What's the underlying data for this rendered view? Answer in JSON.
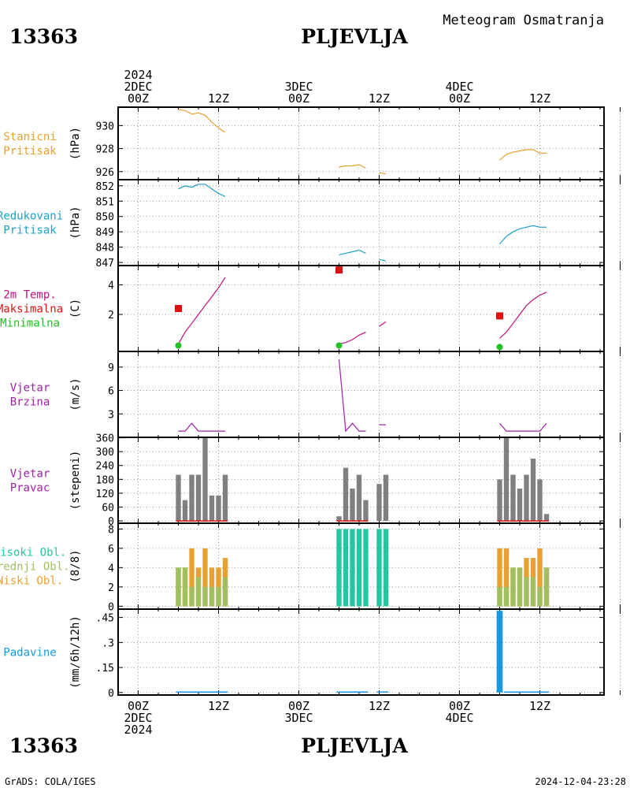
{
  "header": {
    "station_id": "13363",
    "station_name": "PLJEVLJA",
    "subtitle": "Meteogram Osmatranja"
  },
  "footer": {
    "station_id": "13363",
    "station_name": "PLJEVLJA",
    "credit": "GrADS: COLA/IGES",
    "timestamp": "2024-12-04-23:28"
  },
  "colors": {
    "pressure_station": "#e8a030",
    "pressure_reduced": "#1ea0c8",
    "temp_max": "#e01010",
    "temp_min": "#20c020",
    "temp_line": "#c0107a",
    "wind": "#a020a8",
    "wind_dir_bar": "#808080",
    "cloud_high": "#20c8a0",
    "cloud_mid": "#a0c060",
    "cloud_low": "#e8a030",
    "precip": "#1898e0"
  },
  "time_axis": {
    "x_range": [
      0,
      72
    ],
    "top_labels": [
      {
        "x": 0,
        "lines": [
          "2024",
          "2DEC",
          "00Z"
        ]
      },
      {
        "x": 12,
        "lines": [
          "12Z"
        ]
      },
      {
        "x": 24,
        "lines": [
          "3DEC",
          "00Z"
        ]
      },
      {
        "x": 36,
        "lines": [
          "12Z"
        ]
      },
      {
        "x": 48,
        "lines": [
          "4DEC",
          "00Z"
        ]
      },
      {
        "x": 60,
        "lines": [
          "12Z"
        ]
      }
    ],
    "bottom_labels": [
      {
        "x": 0,
        "lines": [
          "00Z",
          "2DEC",
          "2024"
        ]
      },
      {
        "x": 12,
        "lines": [
          "12Z"
        ]
      },
      {
        "x": 24,
        "lines": [
          "00Z",
          "3DEC"
        ]
      },
      {
        "x": 36,
        "lines": [
          "12Z"
        ]
      },
      {
        "x": 48,
        "lines": [
          "00Z",
          "4DEC"
        ]
      },
      {
        "x": 60,
        "lines": [
          "12Z"
        ]
      }
    ]
  },
  "chart_data": [
    {
      "type": "line",
      "name": "pressure_station",
      "labels": [
        "Stanicni",
        "Pritisak"
      ],
      "ylabel": "(hPa)",
      "ylim": [
        925.3,
        931.6
      ],
      "yticks": [
        926,
        928,
        930
      ],
      "grid": true,
      "series": [
        {
          "color_key": "pressure_station",
          "segments": [
            [
              [
                6,
                931.4
              ],
              [
                7,
                931.3
              ],
              [
                8,
                931.0
              ],
              [
                9,
                931.1
              ],
              [
                10,
                930.9
              ],
              [
                11,
                930.3
              ],
              [
                12,
                929.8
              ],
              [
                13,
                929.4
              ]
            ],
            [
              [
                30,
                926.4
              ],
              [
                31,
                926.5
              ],
              [
                32,
                926.5
              ],
              [
                33,
                926.6
              ],
              [
                34,
                926.3
              ]
            ],
            [
              [
                36,
                925.9
              ],
              [
                37,
                925.8
              ]
            ],
            [
              [
                54,
                927.0
              ],
              [
                55,
                927.5
              ],
              [
                56,
                927.7
              ],
              [
                57,
                927.8
              ],
              [
                58,
                927.9
              ],
              [
                59,
                927.9
              ],
              [
                60,
                927.6
              ],
              [
                61,
                927.6
              ]
            ]
          ]
        }
      ]
    },
    {
      "type": "line",
      "name": "pressure_reduced",
      "labels": [
        "Redukovani",
        "Pritisak"
      ],
      "ylabel": "(hPa)",
      "ylim": [
        846.8,
        852.4
      ],
      "yticks": [
        847,
        848,
        849,
        850,
        851,
        852
      ],
      "grid": true,
      "series": [
        {
          "color_key": "pressure_reduced",
          "segments": [
            [
              [
                6,
                851.8
              ],
              [
                7,
                852.0
              ],
              [
                8,
                851.9
              ],
              [
                9,
                852.1
              ],
              [
                10,
                852.1
              ],
              [
                11,
                851.8
              ],
              [
                12,
                851.5
              ],
              [
                13,
                851.3
              ]
            ],
            [
              [
                30,
                847.5
              ],
              [
                31,
                847.6
              ],
              [
                32,
                847.7
              ],
              [
                33,
                847.8
              ],
              [
                34,
                847.6
              ]
            ],
            [
              [
                36,
                847.2
              ],
              [
                37,
                847.1
              ]
            ],
            [
              [
                54,
                848.2
              ],
              [
                55,
                848.7
              ],
              [
                56,
                849.0
              ],
              [
                57,
                849.2
              ],
              [
                58,
                849.3
              ],
              [
                59,
                849.4
              ],
              [
                60,
                849.3
              ],
              [
                61,
                849.3
              ]
            ]
          ]
        }
      ]
    },
    {
      "type": "line",
      "name": "temperature",
      "labels": [
        "2m Temp.",
        "Maksimalna",
        "Minimalna"
      ],
      "label_color_keys": [
        "temp_line",
        "temp_max",
        "temp_min"
      ],
      "ylabel": "(C)",
      "ylim": [
        -0.5,
        5.3
      ],
      "yticks": [
        2,
        4
      ],
      "grid": true,
      "series": [
        {
          "color_key": "temp_line",
          "segments": [
            [
              [
                6,
                0.0
              ],
              [
                7,
                0.8
              ],
              [
                8,
                1.4
              ],
              [
                9,
                2.0
              ],
              [
                10,
                2.6
              ],
              [
                11,
                3.2
              ],
              [
                12,
                3.8
              ],
              [
                13,
                4.5
              ]
            ],
            [
              [
                30,
                0.0
              ],
              [
                31,
                0.1
              ],
              [
                32,
                0.3
              ],
              [
                33,
                0.6
              ],
              [
                34,
                0.8
              ]
            ],
            [
              [
                36,
                1.2
              ],
              [
                37,
                1.5
              ]
            ],
            [
              [
                54,
                0.4
              ],
              [
                55,
                0.8
              ],
              [
                56,
                1.4
              ],
              [
                57,
                2.0
              ],
              [
                58,
                2.6
              ],
              [
                59,
                3.0
              ],
              [
                60,
                3.3
              ],
              [
                61,
                3.5
              ]
            ]
          ]
        }
      ],
      "markers": [
        {
          "color_key": "temp_max",
          "shape": "square",
          "points": [
            [
              6,
              2.4
            ],
            [
              30,
              5.0
            ],
            [
              54,
              1.9
            ]
          ]
        },
        {
          "color_key": "temp_min",
          "shape": "circle",
          "points": [
            [
              6,
              -0.1
            ],
            [
              30,
              -0.1
            ],
            [
              54,
              -0.2
            ]
          ]
        }
      ]
    },
    {
      "type": "line",
      "name": "wind_speed",
      "labels": [
        "Vjetar",
        "Brzina"
      ],
      "ylabel": "(m/s)",
      "ylim": [
        0,
        11
      ],
      "yticks": [
        3,
        6,
        9
      ],
      "grid": true,
      "series": [
        {
          "color_key": "wind",
          "segments": [
            [
              [
                6,
                0.8
              ],
              [
                7,
                0.8
              ],
              [
                8,
                1.8
              ],
              [
                9,
                0.8
              ],
              [
                10,
                0.8
              ],
              [
                11,
                0.8
              ],
              [
                12,
                0.8
              ],
              [
                13,
                0.8
              ]
            ],
            [
              [
                30,
                10.0
              ],
              [
                31,
                0.8
              ],
              [
                32,
                1.8
              ],
              [
                33,
                0.8
              ],
              [
                34,
                0.8
              ]
            ],
            [
              [
                36,
                1.6
              ],
              [
                37,
                1.6
              ]
            ],
            [
              [
                54,
                1.8
              ],
              [
                55,
                0.8
              ],
              [
                56,
                0.8
              ],
              [
                57,
                0.8
              ],
              [
                58,
                0.8
              ],
              [
                59,
                0.8
              ],
              [
                60,
                0.8
              ],
              [
                61,
                1.8
              ]
            ]
          ]
        }
      ]
    },
    {
      "type": "bar",
      "name": "wind_direction",
      "labels": [
        "Vjetar",
        "Pravac"
      ],
      "ylabel": "(stepeni)",
      "ylim": [
        -10,
        362
      ],
      "yticks": [
        0,
        60,
        120,
        180,
        240,
        300,
        360
      ],
      "grid": true,
      "bar_width_hours": 0.75,
      "series": [
        {
          "color_key": "wind_dir_bar",
          "points": [
            [
              6,
              200
            ],
            [
              7,
              90
            ],
            [
              8,
              200
            ],
            [
              9,
              200
            ],
            [
              10,
              360
            ],
            [
              11,
              110
            ],
            [
              12,
              110
            ],
            [
              13,
              200
            ],
            [
              30,
              20
            ],
            [
              31,
              230
            ],
            [
              32,
              140
            ],
            [
              33,
              200
            ],
            [
              34,
              90
            ],
            [
              36,
              160
            ],
            [
              37,
              200
            ],
            [
              54,
              180
            ],
            [
              55,
              360
            ],
            [
              56,
              200
            ],
            [
              57,
              140
            ],
            [
              58,
              200
            ],
            [
              59,
              270
            ],
            [
              60,
              180
            ],
            [
              61,
              30
            ]
          ]
        }
      ],
      "baselines": [
        {
          "color_key": "temp_max",
          "y": 0,
          "x_ranges": [
            [
              6,
              13
            ],
            [
              30,
              34
            ],
            [
              54,
              61
            ]
          ]
        }
      ]
    },
    {
      "type": "bar",
      "name": "clouds",
      "labels": [
        "Visoki Obl.",
        "Srednji Obl.",
        "Niski Obl."
      ],
      "label_color_keys": [
        "cloud_high",
        "cloud_mid",
        "cloud_low"
      ],
      "ylabel": "(8/8)",
      "ylim": [
        -0.3,
        8.6
      ],
      "yticks": [
        0,
        2,
        4,
        6,
        8
      ],
      "grid": true,
      "bar_width_hours": 0.75,
      "series": [
        {
          "name": "Niski Obl.",
          "color_key": "cloud_low",
          "points": [
            [
              6,
              4
            ],
            [
              7,
              4
            ],
            [
              8,
              6
            ],
            [
              9,
              4
            ],
            [
              10,
              6
            ],
            [
              11,
              4
            ],
            [
              12,
              4
            ],
            [
              13,
              5
            ],
            [
              54,
              6
            ],
            [
              55,
              6
            ],
            [
              56,
              4
            ],
            [
              57,
              4
            ],
            [
              58,
              5
            ],
            [
              59,
              5
            ],
            [
              60,
              6
            ],
            [
              61,
              4
            ]
          ]
        },
        {
          "name": "Srednji Obl.",
          "color_key": "cloud_mid",
          "points": [
            [
              6,
              4
            ],
            [
              7,
              4
            ],
            [
              8,
              2
            ],
            [
              9,
              3
            ],
            [
              10,
              2
            ],
            [
              11,
              2
            ],
            [
              12,
              2
            ],
            [
              13,
              3
            ],
            [
              54,
              2
            ],
            [
              55,
              2
            ],
            [
              56,
              4
            ],
            [
              57,
              4
            ],
            [
              58,
              3
            ],
            [
              59,
              3
            ],
            [
              60,
              2
            ],
            [
              61,
              4
            ]
          ]
        },
        {
          "name": "Visoki Obl.",
          "color_key": "cloud_high",
          "points": [
            [
              30,
              8
            ],
            [
              31,
              8
            ],
            [
              32,
              8
            ],
            [
              33,
              8
            ],
            [
              34,
              8
            ],
            [
              36,
              8
            ],
            [
              37,
              8
            ]
          ]
        }
      ]
    },
    {
      "type": "bar",
      "name": "precipitation",
      "labels": [
        "Padavine"
      ],
      "ylabel": "(mm/6h/12h)",
      "ylim": [
        -0.015,
        0.5
      ],
      "yticks": [
        0,
        0.15,
        0.3,
        0.45
      ],
      "grid": true,
      "bar_width_hours": 0.9,
      "series": [
        {
          "color_key": "precip",
          "points": [
            [
              54,
              0.49
            ]
          ]
        }
      ],
      "baselines": [
        {
          "color_key": "precip",
          "y": 0.003,
          "x_ranges": [
            [
              6,
              13
            ],
            [
              30,
              34
            ],
            [
              36,
              37
            ],
            [
              55,
              61
            ]
          ]
        }
      ]
    }
  ]
}
